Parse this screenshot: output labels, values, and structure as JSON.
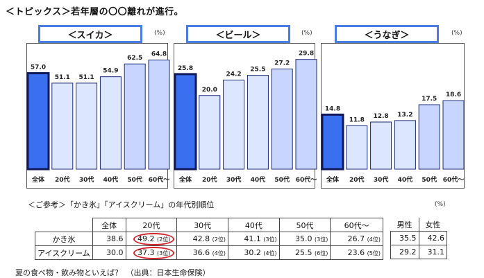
{
  "heading": "＜トピックス＞若年層の〇〇離れが進行。",
  "chart_data": [
    {
      "type": "bar",
      "title": "＜スイカ＞",
      "unit": "(%)",
      "categories": [
        "全体",
        "20代",
        "30代",
        "40代",
        "50代",
        "60代～"
      ],
      "values": [
        57.0,
        51.1,
        51.1,
        54.9,
        62.5,
        64.8
      ],
      "labels": [
        "57.0",
        "51.1",
        "51.1",
        "54.9",
        "62.5",
        "64.8"
      ]
    },
    {
      "type": "bar",
      "title": "＜ビール＞",
      "unit": "(%)",
      "categories": [
        "全体",
        "20代",
        "30代",
        "40代",
        "50代",
        "60代～"
      ],
      "values": [
        25.8,
        20.0,
        24.2,
        25.5,
        27.2,
        29.8
      ],
      "labels": [
        "25.8",
        "20.0",
        "24.2",
        "25.5",
        "27.2",
        "29.8"
      ]
    },
    {
      "type": "bar",
      "title": "＜うなぎ＞",
      "unit": "(%)",
      "categories": [
        "全体",
        "20代",
        "30代",
        "40代",
        "50代",
        "60代～"
      ],
      "values": [
        14.8,
        11.8,
        12.8,
        13.2,
        17.5,
        18.6
      ],
      "labels": [
        "14.8",
        "11.8",
        "12.8",
        "13.2",
        "17.5",
        "18.6"
      ]
    }
  ],
  "colors": {
    "highlight_fill": "#3a6ff0",
    "highlight_stroke": "#101a5a",
    "bar_fill_light": "#dce6ff",
    "bar_fill_mid": "#c8d6ff",
    "bar_stroke": "#1a2a7a",
    "title_border": "#4a7de0",
    "circle": "#d8262e"
  },
  "reference": {
    "title": "＜ご参考＞「かき氷」「アイスクリーム」の年代別順位",
    "unit": "(%)",
    "headers": [
      "全体",
      "20代",
      "30代",
      "40代",
      "50代",
      "60代～"
    ],
    "gender_headers": [
      "男性",
      "女性"
    ],
    "rows": [
      {
        "label": "かき氷",
        "cells": [
          {
            "value": "38.6",
            "rank": ""
          },
          {
            "value": "49.2",
            "rank": "(2位)"
          },
          {
            "value": "42.8",
            "rank": "(2位)"
          },
          {
            "value": "41.1",
            "rank": "(3位)"
          },
          {
            "value": "35.0",
            "rank": "(3位)"
          },
          {
            "value": "26.7",
            "rank": "(4位)"
          }
        ],
        "gender": [
          "35.5",
          "42.6"
        ]
      },
      {
        "label": "アイスクリーム",
        "cells": [
          {
            "value": "30.0",
            "rank": ""
          },
          {
            "value": "37.3",
            "rank": "(3位)"
          },
          {
            "value": "36.6",
            "rank": "(4位)"
          },
          {
            "value": "30.2",
            "rank": "(4位)"
          },
          {
            "value": "25.5",
            "rank": "(6位)"
          },
          {
            "value": "23.6",
            "rank": "(5位)"
          }
        ],
        "gender": [
          "29.2",
          "31.1"
        ]
      }
    ]
  },
  "caption": "夏の食べ物・飲み物といえば？　（出典：日本生命保険）"
}
